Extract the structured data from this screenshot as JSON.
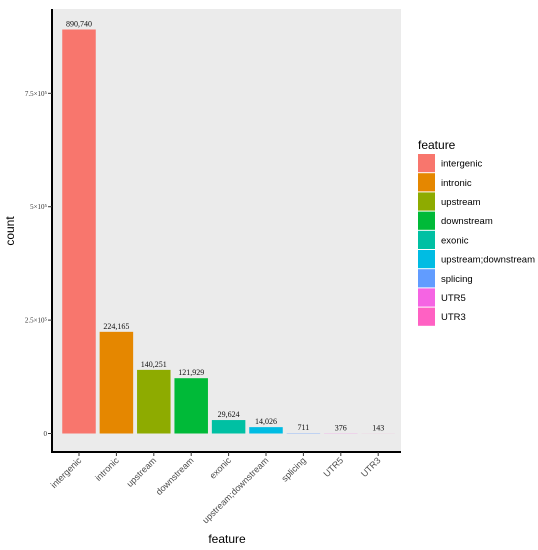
{
  "chart_data": {
    "type": "bar",
    "xlabel": "feature",
    "ylabel": "count",
    "categories": [
      "intergenic",
      "intronic",
      "upstream",
      "downstream",
      "exonic",
      "upstream;downstream",
      "splicing",
      "UTR5",
      "UTR3"
    ],
    "values": [
      890740,
      224165,
      140251,
      121929,
      29624,
      14026,
      711,
      376,
      143
    ],
    "value_labels": [
      "890,740",
      "224,165",
      "140,251",
      "121,929",
      "29,624",
      "14,026",
      "711",
      "376",
      "143"
    ],
    "colors": [
      "#F8766D",
      "#E58700",
      "#8EAB00",
      "#00BA38",
      "#00C0A3",
      "#00BCE3",
      "#619CFF",
      "#F564E3",
      "#FF61C3"
    ],
    "ylim": [
      0,
      945000
    ],
    "yticks": [
      0,
      250000,
      500000,
      750000
    ],
    "ytick_labels": [
      "0",
      "2.5×10⁵",
      "5×10⁵",
      "7.5×10⁵"
    ],
    "legend": {
      "title": "feature",
      "position": "right",
      "entries": [
        "intergenic",
        "intronic",
        "upstream",
        "downstream",
        "exonic",
        "upstream;downstream",
        "splicing",
        "UTR5",
        "UTR3"
      ]
    },
    "panel_background": "#EBEBEB",
    "grid": false
  }
}
